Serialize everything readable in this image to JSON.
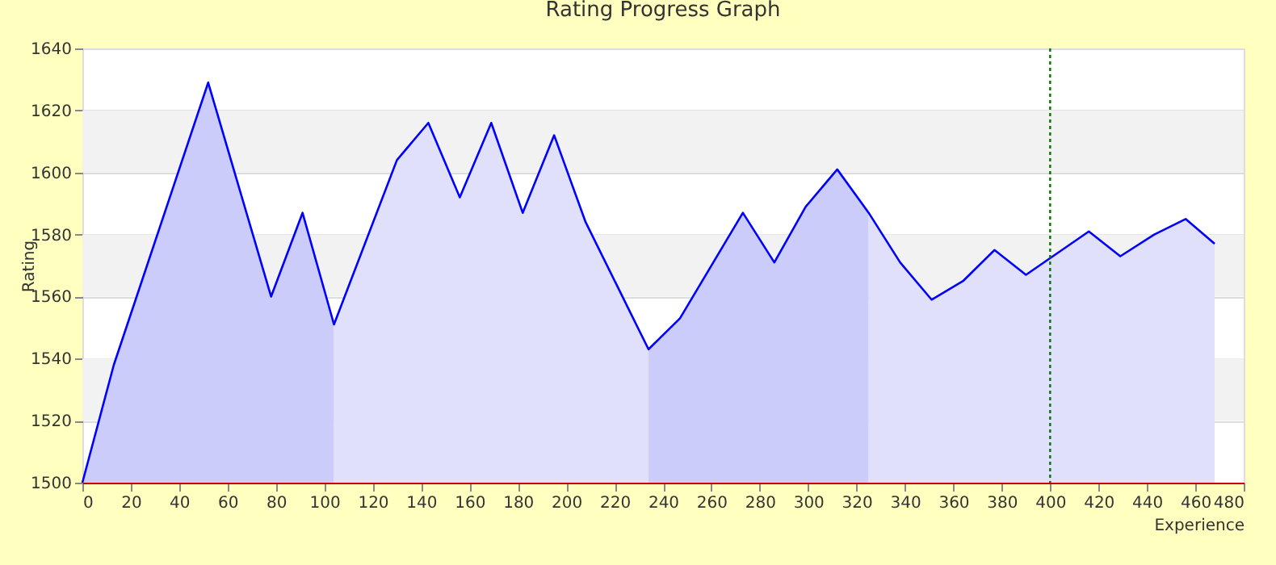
{
  "chart_data": {
    "type": "line",
    "title": "Rating Progress Graph",
    "xlabel": "Experience",
    "ylabel": "Rating",
    "xlim": [
      0,
      480
    ],
    "xticks": [
      0,
      20,
      40,
      60,
      80,
      100,
      120,
      140,
      160,
      180,
      200,
      220,
      240,
      260,
      280,
      300,
      320,
      340,
      360,
      380,
      400,
      420,
      440,
      460,
      480
    ],
    "ylim": [
      1500,
      1640
    ],
    "yticks": [
      1500,
      1520,
      1540,
      1560,
      1580,
      1600,
      1620,
      1640
    ],
    "grid": "y",
    "marker": "none",
    "line_style": "solid",
    "series": [
      {
        "type": "area",
        "color": "#ccccfa",
        "x": [
          0,
          13,
          52,
          78,
          91,
          104
        ],
        "values": [
          1500,
          1538,
          1629,
          1560,
          1587,
          1551
        ]
      },
      {
        "type": "area",
        "color": "#e0e0fa",
        "x": [
          104,
          130,
          143,
          156,
          169,
          182,
          195,
          208,
          234
        ],
        "values": [
          1551,
          1604,
          1616,
          1592,
          1616,
          1587,
          1612,
          1584,
          1543
        ]
      },
      {
        "type": "area",
        "color": "#ccccfa",
        "x": [
          234,
          247,
          273,
          286,
          299,
          312,
          325
        ],
        "values": [
          1543,
          1553,
          1587,
          1571,
          1589,
          1601,
          1587
        ]
      },
      {
        "type": "area",
        "color": "#e0e0fa",
        "x": [
          325,
          338,
          351,
          364,
          377,
          390,
          416,
          429,
          443,
          456,
          468
        ],
        "values": [
          1587,
          1571,
          1559,
          1565,
          1575,
          1567,
          1581,
          1573,
          1580,
          1585,
          1577
        ]
      },
      {
        "color": "#0000ff",
        "x": [
          0,
          13,
          52,
          78,
          91,
          104,
          130,
          143,
          156,
          169,
          182,
          195,
          208,
          234,
          247,
          273,
          286,
          299,
          312,
          325,
          338,
          351,
          364,
          377,
          390,
          416,
          429,
          443,
          456,
          468
        ],
        "values": [
          1500,
          1538,
          1629,
          1560,
          1587,
          1551,
          1604,
          1616,
          1592,
          1616,
          1587,
          1612,
          1584,
          1543,
          1553,
          1587,
          1571,
          1589,
          1601,
          1587,
          1571,
          1559,
          1565,
          1575,
          1567,
          1581,
          1573,
          1580,
          1585,
          1577
        ]
      }
    ],
    "bands": [
      {
        "axis": "y",
        "from": 1520,
        "to": 1540,
        "color": "#f2f2f2"
      },
      {
        "axis": "y",
        "from": 1560,
        "to": 1580,
        "color": "#f2f2f2"
      },
      {
        "axis": "y",
        "from": 1600,
        "to": 1620,
        "color": "#f2f2f2"
      }
    ],
    "ref_lines": [
      {
        "axis": "x",
        "value": 400,
        "color": "#007700",
        "line_style": "dotted"
      }
    ]
  }
}
